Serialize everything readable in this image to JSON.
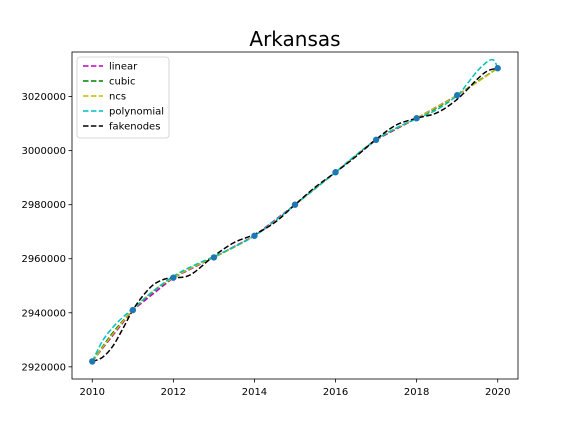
{
  "chart_data": {
    "type": "line",
    "title": "Arkansas",
    "xlabel": "",
    "ylabel": "",
    "xlim": [
      2009.5,
      2020.5
    ],
    "ylim": [
      2915500,
      3036500
    ],
    "xticks": [
      2010,
      2012,
      2014,
      2016,
      2018,
      2020
    ],
    "yticks": [
      2920000,
      2940000,
      2960000,
      2980000,
      3000000,
      3020000
    ],
    "xtick_labels": [
      "2010",
      "2012",
      "2014",
      "2016",
      "2018",
      "2020"
    ],
    "ytick_labels": [
      "2920000",
      "2940000",
      "2960000",
      "2980000",
      "3000000",
      "3020000"
    ],
    "grid": false,
    "legend_position": "top-left",
    "points": {
      "x": [
        2010,
        2011,
        2012,
        2013,
        2014,
        2015,
        2016,
        2017,
        2018,
        2019,
        2020
      ],
      "y": [
        2922000,
        2941000,
        2953000,
        2960500,
        2968500,
        2980000,
        2992000,
        3004000,
        3012000,
        3020500,
        3030500
      ],
      "color": "#1f77b4"
    },
    "series": [
      {
        "name": "linear",
        "color": "#bf00bf",
        "x": [
          2010,
          2011,
          2012,
          2013,
          2014,
          2015,
          2016,
          2017,
          2018,
          2019,
          2020
        ],
        "y": [
          2922000,
          2941000,
          2953000,
          2960500,
          2968500,
          2980000,
          2992000,
          3004000,
          3012000,
          3020500,
          3030500
        ]
      },
      {
        "name": "cubic",
        "color": "#008000",
        "x": [
          2010,
          2010.5,
          2011,
          2011.5,
          2012,
          2012.5,
          2013,
          2013.5,
          2014,
          2014.5,
          2015,
          2015.5,
          2016,
          2016.5,
          2017,
          2017.5,
          2018,
          2018.5,
          2019,
          2019.5,
          2020
        ],
        "y": [
          2922000,
          2932500,
          2941000,
          2947800,
          2953000,
          2957000,
          2960500,
          2964300,
          2968500,
          2973900,
          2980000,
          2986000,
          2992000,
          2998300,
          3004000,
          3008200,
          3012000,
          3015900,
          3020500,
          3025600,
          3030500
        ]
      },
      {
        "name": "ncs",
        "color": "#bfbf00",
        "x": [
          2010,
          2010.5,
          2011,
          2011.5,
          2012,
          2012.5,
          2013,
          2013.5,
          2014,
          2014.5,
          2015,
          2015.5,
          2016,
          2016.5,
          2017,
          2017.5,
          2018,
          2018.5,
          2019,
          2019.5,
          2020
        ],
        "y": [
          2922000,
          2932000,
          2941000,
          2948000,
          2953000,
          2957000,
          2960500,
          2964300,
          2968500,
          2973900,
          2980000,
          2986000,
          2992000,
          2998300,
          3004000,
          3008300,
          3012000,
          3016200,
          3020500,
          3025400,
          3030500
        ]
      },
      {
        "name": "polynomial",
        "color": "#00bfbf",
        "x": [
          2010,
          2010.25,
          2010.5,
          2010.75,
          2011,
          2011.5,
          2012,
          2012.5,
          2013,
          2013.5,
          2014,
          2014.5,
          2015,
          2015.5,
          2016,
          2016.5,
          2017,
          2017.5,
          2018,
          2018.5,
          2019,
          2019.25,
          2019.5,
          2019.75,
          2019.9,
          2020
        ],
        "y": [
          2922000,
          2929500,
          2934500,
          2938300,
          2941500,
          2948000,
          2953500,
          2957500,
          2960800,
          2964400,
          2968500,
          2974000,
          2980000,
          2986000,
          2992000,
          2998300,
          3004000,
          3008400,
          3011800,
          3015200,
          3020400,
          3024800,
          3029500,
          3033000,
          3033500,
          3030500
        ]
      },
      {
        "name": "fakenodes",
        "color": "#000000",
        "x": [
          2010,
          2010.25,
          2010.5,
          2010.75,
          2011,
          2011.25,
          2011.5,
          2011.75,
          2012,
          2012.25,
          2012.5,
          2013,
          2013.5,
          2014,
          2014.5,
          2015,
          2015.5,
          2016,
          2016.5,
          2017,
          2017.5,
          2018,
          2018.5,
          2019,
          2019.5,
          2019.75,
          2020
        ],
        "y": [
          2922000,
          2923500,
          2927500,
          2934000,
          2941000,
          2946300,
          2950300,
          2952300,
          2953000,
          2953200,
          2954800,
          2961000,
          2966000,
          2969000,
          2973400,
          2980000,
          2986500,
          2992000,
          2997800,
          3004200,
          3009500,
          3012000,
          3014000,
          3019000,
          3026500,
          3029500,
          3030500
        ]
      }
    ]
  }
}
